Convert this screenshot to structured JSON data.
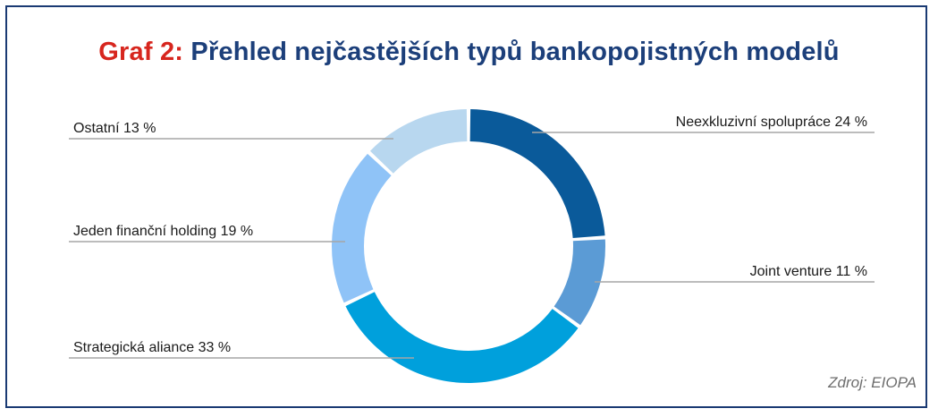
{
  "title": {
    "prefix": "Graf 2:",
    "main": "Přehled nejčastějších typů bankopojistných modelů"
  },
  "source": "Zdroj: EIOPA",
  "colors": {
    "frame": "#1a3a73",
    "title_prefix": "#d7261e",
    "title_main": "#1c3f7a",
    "leader": "#a6a6a6"
  },
  "chart_data": {
    "type": "pie",
    "variant": "donut",
    "slices": [
      {
        "label": "Neexkluzivní spolupráce 24 %",
        "value": 24,
        "color": "#0a5a9a",
        "side": "right"
      },
      {
        "label": "Joint venture 11 %",
        "value": 11,
        "color": "#5b9bd5",
        "side": "right"
      },
      {
        "label": "Strategická aliance 33 %",
        "value": 33,
        "color": "#00a0dc",
        "side": "left"
      },
      {
        "label": "Jeden finanční holding 19 %",
        "value": 19,
        "color": "#8fc3f7",
        "side": "left"
      },
      {
        "label": "Ostatní 13 %",
        "value": 13,
        "color": "#b8d7ef",
        "side": "left"
      }
    ]
  }
}
